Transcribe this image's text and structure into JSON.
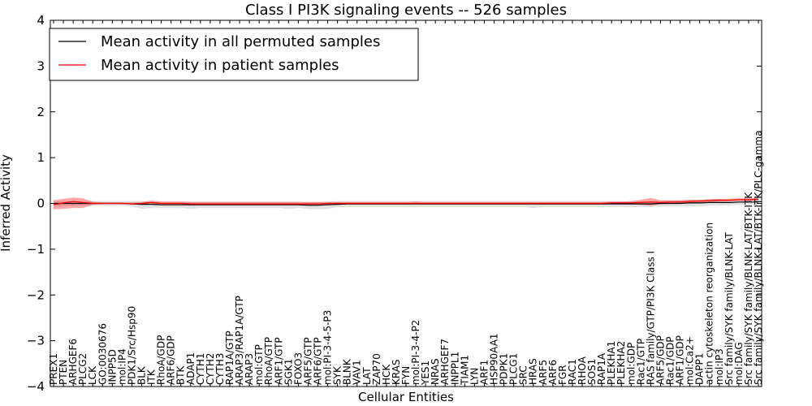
{
  "chart_data": {
    "type": "line",
    "title": "Class I PI3K signaling events -- 526 samples",
    "xlabel": "Cellular Entities",
    "ylabel": "Inferred Activity",
    "ylim": [
      -4,
      4
    ],
    "yticks": [
      -4,
      -3,
      -2,
      -1,
      0,
      1,
      2,
      3,
      4
    ],
    "ytick_labels": [
      "−4",
      "−3",
      "−2",
      "−1",
      "0",
      "1",
      "2",
      "3",
      "4"
    ],
    "grid": false,
    "legend": {
      "placement": "top-left",
      "entries": [
        {
          "label": "Mean activity in all permuted samples",
          "color": "#000000"
        },
        {
          "label": "Mean activity in patient samples",
          "color": "#ff0000"
        }
      ]
    },
    "categories": [
      "PREX1",
      "PTEN",
      "ARHGEF6",
      "PLCG2",
      "LCK",
      "GO:0030676",
      "INPP5D",
      "mol:IP4",
      "PDK1/Src/Hsp90",
      "BLK",
      "ITK",
      "RhoA/GDP",
      "ARF6/GDP",
      "BTK",
      "ADAP1",
      "CYTH1",
      "CYTH2",
      "CYTH3",
      "RAP1A/GTP",
      "ARAP3/RAP1A/GTP",
      "ARAP3",
      "mol:GTP",
      "RhoA/GTP",
      "ARF1/GTP",
      "SGK1",
      "FOXO3",
      "ARF5/GTP",
      "ARF6/GTP",
      "mol:PI-3-4-5-P3",
      "SYK",
      "BLNK",
      "VAV1",
      "LAT",
      "ZAP70",
      "HCK",
      "KRAS",
      "FYN",
      "mol:PI-3-4-P2",
      "YES1",
      "NRAS",
      "ARHGEF7",
      "INPPL1",
      "TIAM1",
      "LYN",
      "ARF1",
      "HSP90AA1",
      "PDPK1",
      "PLCG1",
      "SRC",
      "HRAS",
      "ARF5",
      "ARF6",
      "FGR",
      "RAC1",
      "RHOA",
      "SOS1",
      "RAP1A",
      "PLEKHA1",
      "PLEKHA2",
      "mol:GDP",
      "Rac1/GTP",
      "RAS family/GTP/PI3K Class I",
      "ARF5/GDP",
      "Rac1/GDP",
      "ARF1/GDP",
      "mol:Ca2+",
      "DAPP1",
      "actin cytoskeleton reorganization",
      "mol:IP3",
      "Src family/SYK family/BLNK-LAT",
      "mol:DAG",
      "Src family/SYK family/BLNK-LAT/BTK-ITK",
      "Src family/SYK family/BLNK-LAT/BTK-ITK/PLC-gamma"
    ],
    "series": [
      {
        "name": "Mean activity in all permuted samples",
        "color": "#000000",
        "values": [
          0,
          0,
          0,
          0,
          0,
          0,
          0,
          0,
          -0.01,
          -0.02,
          -0.02,
          -0.03,
          -0.03,
          -0.03,
          -0.03,
          -0.03,
          -0.03,
          -0.03,
          -0.03,
          -0.03,
          -0.03,
          -0.03,
          -0.03,
          -0.03,
          -0.03,
          -0.03,
          -0.04,
          -0.04,
          -0.03,
          -0.02,
          -0.01,
          -0.01,
          -0.01,
          -0.01,
          -0.01,
          -0.01,
          -0.01,
          -0.01,
          -0.01,
          -0.01,
          -0.01,
          -0.01,
          -0.01,
          -0.01,
          -0.01,
          -0.01,
          -0.01,
          -0.01,
          -0.01,
          -0.01,
          -0.01,
          -0.01,
          -0.01,
          -0.01,
          -0.01,
          -0.01,
          -0.01,
          -0.01,
          -0.01,
          -0.01,
          -0.01,
          -0.01,
          0,
          0,
          0,
          0.01,
          0.01,
          0.02,
          0.02,
          0.02,
          0.03,
          0.03,
          0.03
        ],
        "band_lower": [
          -0.05,
          -0.05,
          -0.05,
          -0.05,
          -0.05,
          -0.05,
          -0.05,
          -0.05,
          -0.07,
          -0.12,
          -0.1,
          -0.1,
          -0.1,
          -0.1,
          -0.12,
          -0.1,
          -0.1,
          -0.1,
          -0.1,
          -0.1,
          -0.1,
          -0.1,
          -0.1,
          -0.1,
          -0.12,
          -0.1,
          -0.12,
          -0.13,
          -0.12,
          -0.08,
          -0.08,
          -0.08,
          -0.08,
          -0.08,
          -0.08,
          -0.08,
          -0.08,
          -0.08,
          -0.08,
          -0.08,
          -0.08,
          -0.08,
          -0.08,
          -0.08,
          -0.08,
          -0.08,
          -0.08,
          -0.08,
          -0.08,
          -0.1,
          -0.08,
          -0.08,
          -0.08,
          -0.08,
          -0.08,
          -0.08,
          -0.08,
          -0.08,
          -0.08,
          -0.08,
          -0.08,
          -0.08,
          -0.07,
          -0.07,
          -0.07,
          -0.06,
          -0.07,
          -0.05,
          -0.05,
          -0.04,
          -0.03,
          -0.03,
          -0.03
        ],
        "band_upper": [
          0.05,
          0.05,
          0.05,
          0.05,
          0.05,
          0.05,
          0.05,
          0.05,
          0.05,
          0.05,
          0.05,
          0.04,
          0.04,
          0.04,
          0.04,
          0.04,
          0.04,
          0.04,
          0.04,
          0.04,
          0.04,
          0.04,
          0.04,
          0.04,
          0.04,
          0.04,
          0.03,
          0.03,
          0.04,
          0.05,
          0.05,
          0.05,
          0.05,
          0.05,
          0.05,
          0.05,
          0.05,
          0.05,
          0.05,
          0.05,
          0.05,
          0.05,
          0.05,
          0.05,
          0.05,
          0.05,
          0.05,
          0.05,
          0.05,
          0.05,
          0.05,
          0.05,
          0.05,
          0.05,
          0.05,
          0.05,
          0.05,
          0.05,
          0.05,
          0.05,
          0.05,
          0.05,
          0.06,
          0.06,
          0.07,
          0.08,
          0.08,
          0.09,
          0.09,
          0.1,
          0.1,
          0.1,
          0.1
        ]
      },
      {
        "name": "Mean activity in patient samples",
        "color": "#ff0000",
        "values": [
          -0.03,
          0.01,
          0.04,
          0.02,
          0,
          0,
          0,
          0,
          -0.01,
          0,
          0.02,
          0,
          0,
          0,
          -0.01,
          -0.01,
          -0.01,
          -0.01,
          -0.01,
          -0.01,
          -0.01,
          -0.01,
          -0.01,
          -0.01,
          -0.01,
          -0.01,
          -0.01,
          -0.01,
          0,
          0,
          0,
          0,
          0,
          0,
          0,
          0,
          0,
          0,
          0,
          0,
          0,
          0,
          0,
          0,
          0,
          0,
          0,
          0,
          0,
          0,
          0,
          0,
          0,
          0,
          0,
          0,
          0,
          0.01,
          0.01,
          0.01,
          0.02,
          0.03,
          0.02,
          0.03,
          0.03,
          0.04,
          0.05,
          0.06,
          0.07,
          0.07,
          0.08,
          0.08,
          0.09
        ],
        "band_lower": [
          -0.13,
          -0.12,
          -0.1,
          -0.1,
          -0.03,
          -0.01,
          -0.01,
          -0.01,
          -0.02,
          -0.02,
          -0.01,
          -0.03,
          -0.03,
          -0.03,
          -0.04,
          -0.04,
          -0.04,
          -0.04,
          -0.04,
          -0.04,
          -0.04,
          -0.04,
          -0.04,
          -0.04,
          -0.04,
          -0.04,
          -0.04,
          -0.04,
          -0.03,
          -0.02,
          -0.02,
          -0.02,
          -0.02,
          -0.02,
          -0.02,
          -0.02,
          -0.02,
          -0.02,
          -0.02,
          -0.02,
          -0.02,
          -0.02,
          -0.02,
          -0.02,
          -0.02,
          -0.02,
          -0.02,
          -0.02,
          -0.02,
          -0.02,
          -0.02,
          -0.02,
          -0.02,
          -0.02,
          -0.02,
          -0.02,
          -0.02,
          -0.01,
          -0.02,
          -0.02,
          -0.03,
          -0.05,
          -0.02,
          -0.01,
          0,
          0.01,
          0.02,
          0.03,
          0.04,
          0.05,
          0.06,
          0.06,
          0.07
        ],
        "band_upper": [
          0.07,
          0.1,
          0.13,
          0.11,
          0.04,
          0.02,
          0.02,
          0.02,
          0.02,
          0.03,
          0.06,
          0.04,
          0.04,
          0.04,
          0.03,
          0.03,
          0.03,
          0.03,
          0.03,
          0.03,
          0.03,
          0.03,
          0.03,
          0.03,
          0.03,
          0.03,
          0.03,
          0.03,
          0.03,
          0.03,
          0.03,
          0.03,
          0.03,
          0.03,
          0.03,
          0.03,
          0.03,
          0.04,
          0.03,
          0.03,
          0.03,
          0.03,
          0.03,
          0.03,
          0.03,
          0.03,
          0.03,
          0.03,
          0.03,
          0.03,
          0.03,
          0.03,
          0.03,
          0.03,
          0.03,
          0.03,
          0.03,
          0.04,
          0.04,
          0.05,
          0.08,
          0.12,
          0.07,
          0.07,
          0.07,
          0.08,
          0.08,
          0.09,
          0.1,
          0.1,
          0.11,
          0.11,
          0.12
        ]
      }
    ]
  }
}
